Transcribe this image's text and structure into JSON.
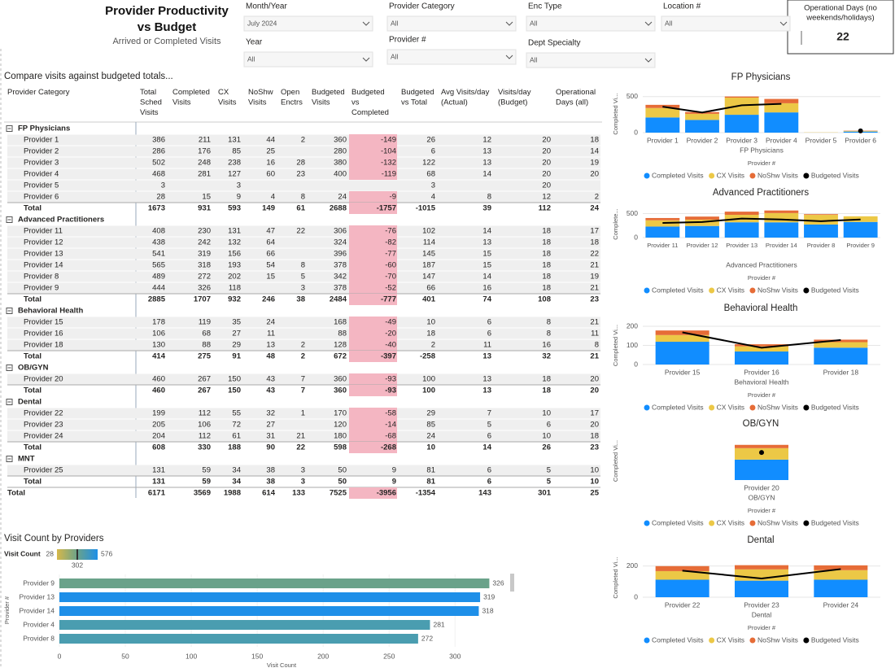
{
  "header": {
    "title_lines": [
      "Provider Productivity",
      "vs Budget"
    ],
    "subtitle": "Arrived or Completed Visits"
  },
  "filters": [
    {
      "label": "Month/Year",
      "value": "July 2024"
    },
    {
      "label": "Year",
      "value": "All"
    },
    {
      "label": "Provider Category",
      "value": "All"
    },
    {
      "label": "Provider #",
      "value": "All"
    },
    {
      "label": "Enc Type",
      "value": "All"
    },
    {
      "label": "Dept Specialty",
      "value": "All"
    },
    {
      "label": "Location #",
      "value": "All"
    }
  ],
  "card": {
    "label_lines": [
      "Operational Days (no",
      "weekends/holidays)"
    ],
    "value": 22
  },
  "table": {
    "caption": "Compare visits against budgeted totals...",
    "columns": [
      [
        "Provider Category"
      ],
      [
        "Total",
        "Sched",
        "Visits"
      ],
      [
        "Completed",
        "Visits"
      ],
      [
        "CX",
        "Visits"
      ],
      [
        "NoShw",
        "Visits"
      ],
      [
        "Open",
        "Enctrs"
      ],
      [
        "Budgeted",
        "Visits"
      ],
      [
        "Budgeted",
        "vs",
        "Completed"
      ],
      [
        "Budgeted",
        "vs Total"
      ],
      [
        "Avg Visits/day",
        "(Actual)"
      ],
      [
        "Visits/day",
        "(Budget)"
      ],
      [
        "Operational",
        "Days (all)"
      ]
    ],
    "negative_highlight": "#f4b6c2",
    "groups": [
      {
        "name": "FP Physicians",
        "rows": [
          {
            "label": "Provider 1",
            "cells": [
              386,
              211,
              131,
              44,
              2,
              360,
              -149,
              26,
              12,
              20,
              18
            ]
          },
          {
            "label": "Provider 2",
            "cells": [
              286,
              176,
              85,
              25,
              null,
              280,
              -104,
              6,
              13,
              20,
              14
            ]
          },
          {
            "label": "Provider 3",
            "cells": [
              502,
              248,
              238,
              16,
              28,
              380,
              -132,
              122,
              13,
              20,
              19
            ]
          },
          {
            "label": "Provider 4",
            "cells": [
              468,
              281,
              127,
              60,
              23,
              400,
              -119,
              68,
              14,
              20,
              20
            ]
          },
          {
            "label": "Provider 5",
            "cells": [
              3,
              null,
              3,
              null,
              null,
              null,
              null,
              3,
              null,
              20,
              null
            ]
          },
          {
            "label": "Provider 6",
            "cells": [
              28,
              15,
              9,
              4,
              8,
              24,
              -9,
              4,
              8,
              12,
              2
            ]
          }
        ],
        "total": {
          "label": "Total",
          "cells": [
            1673,
            931,
            593,
            149,
            61,
            2688,
            -1757,
            -1015,
            39,
            112,
            24
          ]
        }
      },
      {
        "name": "Advanced Practitioners",
        "rows": [
          {
            "label": "Provider 11",
            "cells": [
              408,
              230,
              131,
              47,
              22,
              306,
              -76,
              102,
              14,
              18,
              17
            ]
          },
          {
            "label": "Provider 12",
            "cells": [
              438,
              242,
              132,
              64,
              null,
              324,
              -82,
              114,
              13,
              18,
              18
            ]
          },
          {
            "label": "Provider 13",
            "cells": [
              541,
              319,
              156,
              66,
              null,
              396,
              -77,
              145,
              15,
              18,
              22
            ]
          },
          {
            "label": "Provider 14",
            "cells": [
              565,
              318,
              193,
              54,
              8,
              378,
              -60,
              187,
              15,
              18,
              21
            ]
          },
          {
            "label": "Provider 8",
            "cells": [
              489,
              272,
              202,
              15,
              5,
              342,
              -70,
              147,
              14,
              18,
              19
            ]
          },
          {
            "label": "Provider 9",
            "cells": [
              444,
              326,
              118,
              null,
              3,
              378,
              -52,
              66,
              16,
              18,
              21
            ]
          }
        ],
        "total": {
          "label": "Total",
          "cells": [
            2885,
            1707,
            932,
            246,
            38,
            2484,
            -777,
            401,
            74,
            108,
            23
          ]
        }
      },
      {
        "name": "Behavioral Health",
        "rows": [
          {
            "label": "Provider 15",
            "cells": [
              178,
              119,
              35,
              24,
              null,
              168,
              -49,
              10,
              6,
              8,
              21
            ]
          },
          {
            "label": "Provider 16",
            "cells": [
              106,
              68,
              27,
              11,
              null,
              88,
              -20,
              18,
              6,
              8,
              11
            ]
          },
          {
            "label": "Provider 18",
            "cells": [
              130,
              88,
              29,
              13,
              2,
              128,
              -40,
              2,
              11,
              16,
              8
            ]
          }
        ],
        "total": {
          "label": "Total",
          "cells": [
            414,
            275,
            91,
            48,
            2,
            672,
            -397,
            -258,
            13,
            32,
            21
          ]
        }
      },
      {
        "name": "OB/GYN",
        "rows": [
          {
            "label": "Provider 20",
            "cells": [
              460,
              267,
              150,
              43,
              7,
              360,
              -93,
              100,
              13,
              18,
              20
            ]
          }
        ],
        "total": {
          "label": "Total",
          "cells": [
            460,
            267,
            150,
            43,
            7,
            360,
            -93,
            100,
            13,
            18,
            20
          ]
        }
      },
      {
        "name": "Dental",
        "rows": [
          {
            "label": "Provider 22",
            "cells": [
              199,
              112,
              55,
              32,
              1,
              170,
              -58,
              29,
              7,
              10,
              17
            ]
          },
          {
            "label": "Provider 23",
            "cells": [
              205,
              106,
              72,
              27,
              null,
              120,
              -14,
              85,
              5,
              6,
              20
            ]
          },
          {
            "label": "Provider 24",
            "cells": [
              204,
              112,
              61,
              31,
              21,
              180,
              -68,
              24,
              6,
              10,
              18
            ]
          }
        ],
        "total": {
          "label": "Total",
          "cells": [
            608,
            330,
            188,
            90,
            22,
            598,
            -268,
            10,
            14,
            26,
            23
          ]
        }
      },
      {
        "name": "MNT",
        "rows": [
          {
            "label": "Provider 25",
            "cells": [
              131,
              59,
              34,
              38,
              3,
              50,
              9,
              81,
              6,
              5,
              10
            ]
          }
        ],
        "total": {
          "label": "Total",
          "cells": [
            131,
            59,
            34,
            38,
            3,
            50,
            9,
            81,
            6,
            5,
            10
          ]
        }
      }
    ],
    "grand_total": {
      "label": "Total",
      "cells": [
        6171,
        3569,
        1988,
        614,
        133,
        7525,
        -3956,
        -1354,
        143,
        301,
        25
      ]
    }
  },
  "chart_data": [
    {
      "type": "combo",
      "title": "FP Physicians",
      "categories": [
        "Provider 1",
        "Provider 2",
        "Provider 3",
        "Provider 4",
        "Provider 5",
        "Provider 6"
      ],
      "x_group_label": "FP Physicians",
      "x_label": "Provider #",
      "y_label": "Completed Vi...",
      "ylim": [
        0,
        520
      ],
      "yticks": [
        0,
        500
      ],
      "series": [
        {
          "name": "Completed Visits",
          "color": "#118dff",
          "values": [
            211,
            176,
            248,
            281,
            null,
            15
          ]
        },
        {
          "name": "CX Visits",
          "color": "#ecc846",
          "values": [
            131,
            85,
            238,
            127,
            3,
            9
          ]
        },
        {
          "name": "NoShw Visits",
          "color": "#e66c37",
          "values": [
            44,
            25,
            16,
            60,
            null,
            4
          ]
        },
        {
          "name": "Budgeted Visits",
          "color": "#000000",
          "type": "line",
          "values": [
            360,
            280,
            380,
            400,
            null,
            24
          ]
        }
      ]
    },
    {
      "type": "combo",
      "title": "Advanced Practitioners",
      "categories": [
        "Provider 11",
        "Provider 12",
        "Provider 13",
        "Provider 14",
        "Provider 8",
        "Provider 9"
      ],
      "x_group_label": "Advanced Practitioners",
      "x_label": "Provider #",
      "y_label": "Complete...",
      "ylim": [
        0,
        560
      ],
      "yticks": [
        0,
        500
      ],
      "series": [
        {
          "name": "Completed Visits",
          "color": "#118dff",
          "values": [
            230,
            242,
            319,
            318,
            272,
            326
          ]
        },
        {
          "name": "CX Visits",
          "color": "#ecc846",
          "values": [
            131,
            132,
            156,
            193,
            202,
            118
          ]
        },
        {
          "name": "NoShw Visits",
          "color": "#e66c37",
          "values": [
            47,
            64,
            66,
            54,
            15,
            null
          ]
        },
        {
          "name": "Budgeted Visits",
          "color": "#000000",
          "type": "line",
          "values": [
            306,
            324,
            396,
            378,
            342,
            378
          ]
        }
      ]
    },
    {
      "type": "combo",
      "title": "Behavioral Health",
      "categories": [
        "Provider 15",
        "Provider 16",
        "Provider 18"
      ],
      "x_group_label": "Behavioral Health",
      "x_label": "Provider #",
      "y_label": "Completed Vi...",
      "ylim": [
        0,
        200
      ],
      "yticks": [
        0,
        100,
        200
      ],
      "series": [
        {
          "name": "Completed Visits",
          "color": "#118dff",
          "values": [
            119,
            68,
            88
          ]
        },
        {
          "name": "CX Visits",
          "color": "#ecc846",
          "values": [
            35,
            27,
            29
          ]
        },
        {
          "name": "NoShw Visits",
          "color": "#e66c37",
          "values": [
            24,
            11,
            13
          ]
        },
        {
          "name": "Budgeted Visits",
          "color": "#000000",
          "type": "line",
          "values": [
            168,
            88,
            128
          ]
        }
      ]
    },
    {
      "type": "combo",
      "title": "OB/GYN",
      "categories": [
        "Provider 20"
      ],
      "x_group_label": "OB/GYN",
      "x_label": "Provider #",
      "y_label": "Completed Vi...",
      "ylim": [
        0,
        500
      ],
      "series": [
        {
          "name": "Completed Visits",
          "color": "#118dff",
          "values": [
            267
          ]
        },
        {
          "name": "CX Visits",
          "color": "#ecc846",
          "values": [
            150
          ]
        },
        {
          "name": "NoShw Visits",
          "color": "#e66c37",
          "values": [
            43
          ]
        },
        {
          "name": "Budgeted Visits",
          "color": "#000000",
          "type": "line",
          "values": [
            360
          ]
        }
      ]
    },
    {
      "type": "combo",
      "title": "Dental",
      "categories": [
        "Provider 22",
        "Provider 23",
        "Provider 24"
      ],
      "x_group_label": "Dental",
      "x_label": "Provider #",
      "y_label": "Completed Vi...",
      "ylim": [
        0,
        250
      ],
      "yticks": [
        0,
        200
      ],
      "series": [
        {
          "name": "Completed Visits",
          "color": "#118dff",
          "values": [
            112,
            106,
            112
          ]
        },
        {
          "name": "CX Visits",
          "color": "#ecc846",
          "values": [
            55,
            72,
            61
          ]
        },
        {
          "name": "NoShw Visits",
          "color": "#e66c37",
          "values": [
            32,
            27,
            31
          ]
        },
        {
          "name": "Budgeted Visits",
          "color": "#000000",
          "type": "line",
          "values": [
            170,
            120,
            180
          ]
        }
      ]
    },
    {
      "type": "hbar",
      "title": "Visit Count by Providers",
      "categories": [
        "Provider 9",
        "Provider 13",
        "Provider 14",
        "Provider 4",
        "Provider 8"
      ],
      "values": [
        326,
        319,
        318,
        281,
        272
      ],
      "colors": [
        "#6aa28a",
        "#1e8fe8",
        "#1e8fe8",
        "#4a9db0",
        "#4a9db0"
      ],
      "xlim": [
        0,
        335
      ],
      "xticks": [
        0,
        50,
        100,
        150,
        200,
        250,
        300
      ],
      "x_label": "Visit Count",
      "y_label": "Provider #",
      "color_legend": {
        "title": "Visit Count",
        "min": 28,
        "mid": 302,
        "max": 576,
        "colors": [
          "#d6b84a",
          "#6aa28a",
          "#1e8fe8"
        ]
      }
    }
  ]
}
